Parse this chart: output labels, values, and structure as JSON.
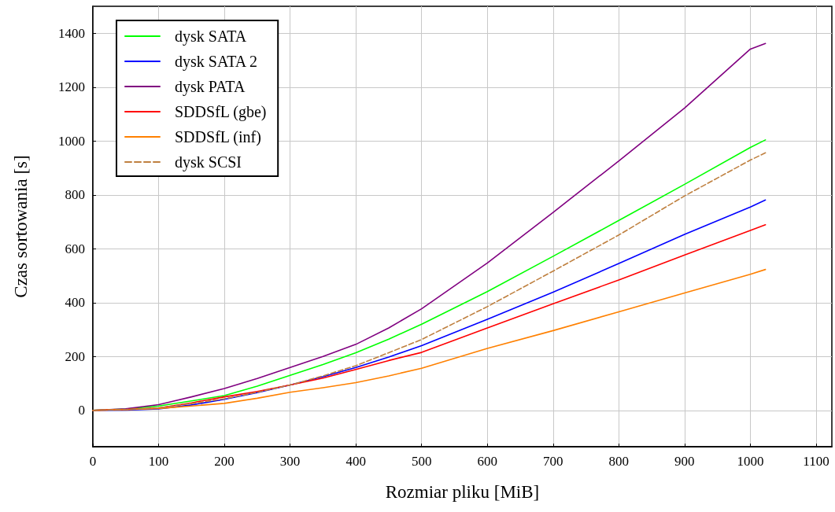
{
  "chart_data": {
    "type": "line",
    "xlabel": "Rozmiar pliku [MiB]",
    "ylabel": "Czas sortowania [s]",
    "x": [
      0,
      50,
      100,
      150,
      200,
      250,
      300,
      350,
      400,
      450,
      500,
      600,
      700,
      800,
      900,
      1000,
      1023
    ],
    "xlim": [
      0,
      1124
    ],
    "xticks": [
      0,
      100,
      200,
      300,
      400,
      500,
      600,
      700,
      800,
      900,
      1000,
      1100
    ],
    "ylim": [
      -135,
      1500
    ],
    "yticks": [
      0,
      200,
      400,
      600,
      800,
      1000,
      1200,
      1400
    ],
    "grid": true,
    "legend": "top left",
    "marker": "none",
    "line_style": "solid",
    "series": [
      {
        "name": "dysk SATA",
        "color": "#00ff00",
        "values": [
          0,
          5,
          16,
          35,
          55,
          90,
          130,
          170,
          214,
          264,
          320,
          441,
          572,
          705,
          839,
          976,
          1004
        ]
      },
      {
        "name": "dysk SATA 2",
        "color": "#0000ff",
        "values": [
          0,
          1,
          5,
          20,
          41,
          66,
          94,
          125,
          159,
          198,
          240,
          338,
          439,
          545,
          653,
          755,
          781
        ]
      },
      {
        "name": "dysk PATA",
        "color": "#800080",
        "values": [
          0,
          6,
          21,
          50,
          81,
          118,
          159,
          200,
          245,
          306,
          377,
          547,
          735,
          926,
          1122,
          1341,
          1362
        ]
      },
      {
        "name": "SDDSfL (gbe)",
        "color": "#ff0000",
        "values": [
          0,
          3,
          9,
          28,
          50,
          70,
          94,
          120,
          152,
          185,
          215,
          306,
          396,
          484,
          577,
          668,
          689
        ]
      },
      {
        "name": "SDDSfL (inf)",
        "color": "#ff8000",
        "values": [
          0,
          3,
          7,
          16,
          26,
          45,
          67,
          84,
          103,
          128,
          156,
          230,
          296,
          366,
          436,
          505,
          523
        ]
      },
      {
        "name": "dysk SCSI",
        "color": "#bf8040",
        "line_style": "dashed",
        "values": [
          0,
          3,
          9,
          25,
          43,
          67,
          94,
          128,
          166,
          214,
          263,
          385,
          517,
          651,
          796,
          929,
          956
        ]
      }
    ]
  }
}
